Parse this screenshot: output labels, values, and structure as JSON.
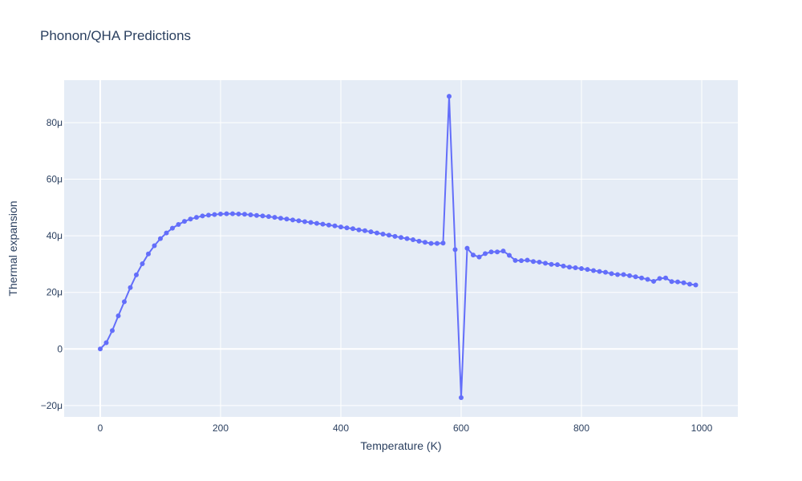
{
  "chart_data": {
    "type": "line",
    "title": "Phonon/QHA Predictions",
    "xlabel": "Temperature (K)",
    "ylabel": "Thermal expansion",
    "xlim": [
      -60,
      1060
    ],
    "ylim": [
      -2.4e-05,
      9.5e-05
    ],
    "x_ticks": [
      0,
      200,
      400,
      600,
      800,
      1000
    ],
    "x_tick_labels": [
      "0",
      "200",
      "400",
      "600",
      "800",
      "1000"
    ],
    "y_ticks": [
      -2e-05,
      0,
      2e-05,
      4e-05,
      6e-05,
      8e-05
    ],
    "y_tick_labels": [
      "−20μ",
      "0",
      "20μ",
      "40μ",
      "60μ",
      "80μ"
    ],
    "grid": true,
    "colors": {
      "series": "#636efa",
      "plot_bg": "#e5ecf6",
      "grid": "#ffffff",
      "text": "#2a3f5f"
    },
    "series": [
      {
        "x": [
          0,
          10,
          20,
          30,
          40,
          50,
          60,
          70,
          80,
          90,
          100,
          110,
          120,
          130,
          140,
          150,
          160,
          170,
          180,
          190,
          200,
          210,
          220,
          230,
          240,
          250,
          260,
          270,
          280,
          290,
          300,
          310,
          320,
          330,
          340,
          350,
          360,
          370,
          380,
          390,
          400,
          410,
          420,
          430,
          440,
          450,
          460,
          470,
          480,
          490,
          500,
          510,
          520,
          530,
          540,
          550,
          560,
          570,
          580,
          590,
          600,
          610,
          620,
          630,
          640,
          650,
          660,
          670,
          680,
          690,
          700,
          710,
          720,
          730,
          740,
          750,
          760,
          770,
          780,
          790,
          800,
          810,
          820,
          830,
          840,
          850,
          860,
          870,
          880,
          890,
          900,
          910,
          920,
          930,
          940,
          950,
          960,
          970,
          980,
          990
        ],
        "y": [
          0,
          2.2e-06,
          6.5e-06,
          1.17e-05,
          1.67e-05,
          2.17e-05,
          2.62e-05,
          3.01e-05,
          3.36e-05,
          3.65e-05,
          3.9e-05,
          4.1e-05,
          4.27e-05,
          4.4e-05,
          4.51e-05,
          4.59e-05,
          4.65e-05,
          4.7e-05,
          4.73e-05,
          4.75e-05,
          4.77e-05,
          4.78e-05,
          4.78e-05,
          4.77e-05,
          4.76e-05,
          4.74e-05,
          4.72e-05,
          4.7e-05,
          4.68e-05,
          4.65e-05,
          4.62e-05,
          4.59e-05,
          4.56e-05,
          4.53e-05,
          4.5e-05,
          4.47e-05,
          4.44e-05,
          4.41e-05,
          4.38e-05,
          4.35e-05,
          4.31e-05,
          4.28e-05,
          4.25e-05,
          4.21e-05,
          4.18e-05,
          4.14e-05,
          4.1e-05,
          4.06e-05,
          4.02e-05,
          3.98e-05,
          3.94e-05,
          3.9e-05,
          3.86e-05,
          3.81e-05,
          3.77e-05,
          3.73e-05,
          3.73e-05,
          3.74e-05,
          8.93e-05,
          3.51e-05,
          -1.72e-05,
          3.56e-05,
          3.32e-05,
          3.25e-05,
          3.37e-05,
          3.43e-05,
          3.43e-05,
          3.46e-05,
          3.31e-05,
          3.13e-05,
          3.12e-05,
          3.14e-05,
          3.09e-05,
          3.07e-05,
          3.03e-05,
          2.99e-05,
          2.98e-05,
          2.93e-05,
          2.89e-05,
          2.87e-05,
          2.84e-05,
          2.81e-05,
          2.77e-05,
          2.74e-05,
          2.71e-05,
          2.66e-05,
          2.63e-05,
          2.63e-05,
          2.59e-05,
          2.55e-05,
          2.51e-05,
          2.46e-05,
          2.39e-05,
          2.49e-05,
          2.51e-05,
          2.38e-05,
          2.37e-05,
          2.34e-05,
          2.29e-05,
          2.26e-05
        ]
      }
    ]
  }
}
